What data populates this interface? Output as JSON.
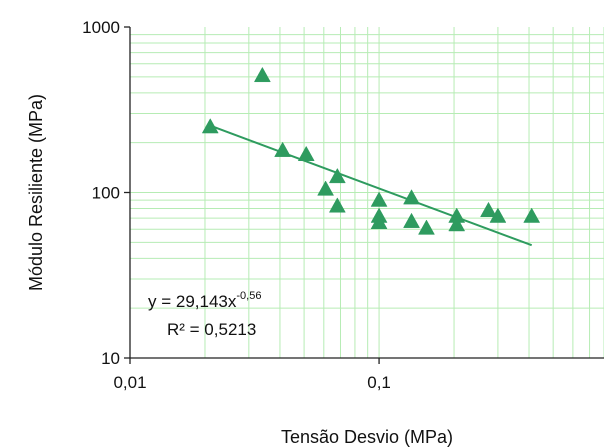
{
  "chart_data": {
    "type": "scatter",
    "title": "",
    "xlabel": "Tensão Desvio (MPa)",
    "ylabel": "Módulo Resiliente (MPa)",
    "xscale": "log",
    "yscale": "log",
    "xlim": [
      0.01,
      0.8
    ],
    "ylim": [
      10,
      1000
    ],
    "x_ticks": [
      0.01,
      0.1
    ],
    "x_tick_labels": [
      "0,01",
      "0,1"
    ],
    "y_ticks": [
      10,
      100,
      1000
    ],
    "y_tick_labels": [
      "10",
      "100",
      "1000"
    ],
    "grid": true,
    "grid_color": "#b6ecb4",
    "marker": "triangle",
    "marker_color": "#2e9b5f",
    "trendline_color": "#2e9b5f",
    "series": [
      {
        "x": [
          0.021,
          0.034,
          0.041,
          0.051,
          0.061,
          0.068,
          0.068,
          0.1,
          0.1,
          0.1,
          0.135,
          0.135,
          0.155,
          0.205,
          0.205,
          0.275,
          0.3,
          0.41
        ],
        "y": [
          250,
          510,
          180,
          170,
          105,
          125,
          83,
          90,
          72,
          66,
          93,
          67,
          61,
          72,
          64,
          78,
          72,
          72
        ]
      }
    ],
    "trendline": {
      "type": "power",
      "a": 29.143,
      "b": -0.56,
      "x_range": [
        0.021,
        0.41
      ],
      "equation_label": "y = 29,143x",
      "equation_exponent": "-0,56",
      "r2_label": "R² = 0,5213"
    }
  }
}
